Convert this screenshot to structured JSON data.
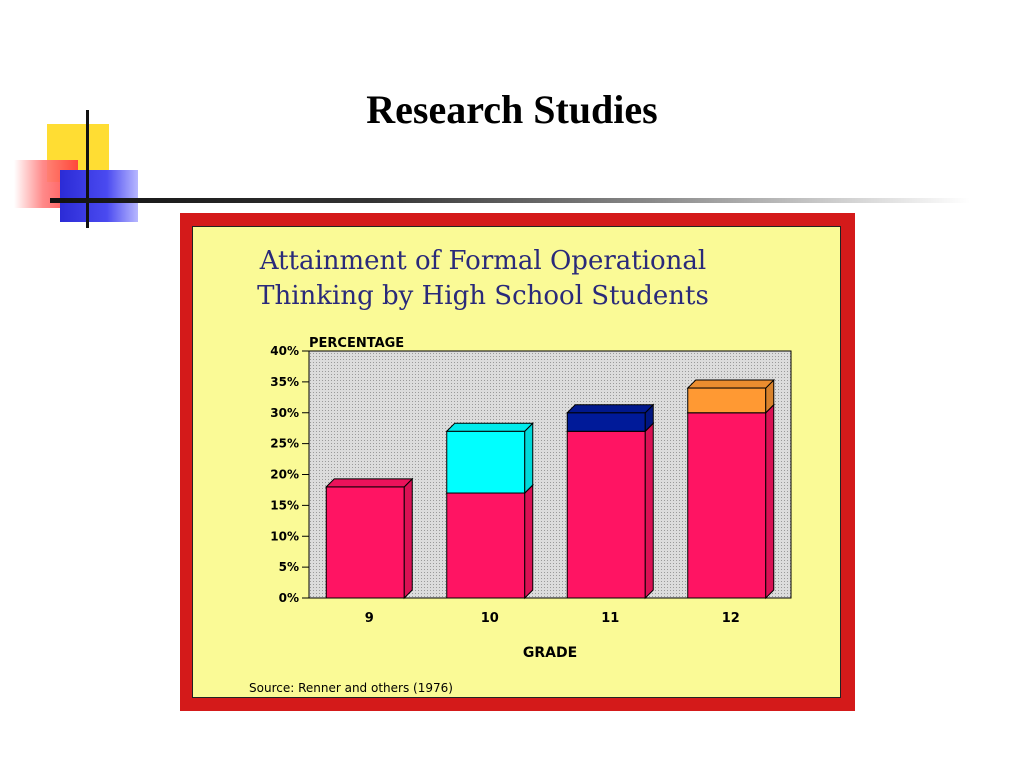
{
  "slide": {
    "title": "Research Studies"
  },
  "colors": {
    "bar_base": "#ff1463",
    "bar_cyan": "#00ffff",
    "bar_navy": "#001a99",
    "bar_orange": "#ff9933",
    "plot_bg": "#d8d8d8",
    "figure_bg": "#fafa96",
    "frame": "#d41a1a"
  },
  "chart_data": {
    "type": "bar",
    "stacked": true,
    "title_lines": [
      "Attainment of Formal Operational",
      "Thinking by High School Students"
    ],
    "ylabel": "PERCENTAGE",
    "xlabel": "GRADE",
    "ylim": [
      0,
      40
    ],
    "yticks": [
      "0%",
      "5%",
      "10%",
      "15%",
      "20%",
      "25%",
      "30%",
      "35%",
      "40%"
    ],
    "categories": [
      "9",
      "10",
      "11",
      "12"
    ],
    "series": [
      {
        "color": "#ff1463",
        "values": [
          18,
          17,
          27,
          30
        ]
      },
      {
        "color": "#00ffff",
        "values": [
          0,
          10,
          0,
          0
        ]
      },
      {
        "color": "#001a99",
        "values": [
          0,
          0,
          3,
          0
        ]
      },
      {
        "color": "#ff9933",
        "values": [
          0,
          0,
          0,
          4
        ]
      }
    ],
    "source": "Source:  Renner and others (1976)",
    "grid": false
  }
}
